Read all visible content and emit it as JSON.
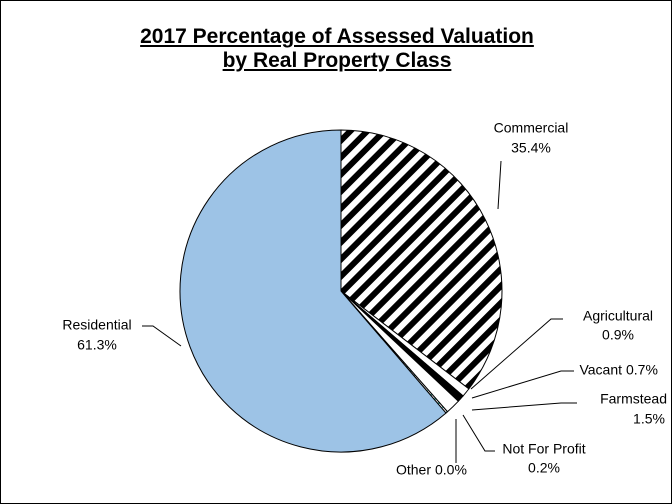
{
  "chart_data": {
    "type": "pie",
    "title": "2017 Percentage of Assessed Valuation by Real Property Class",
    "categories": [
      "Commercial",
      "Agricultural",
      "Vacant",
      "Farmstead",
      "Not For Profit",
      "Other",
      "Residential"
    ],
    "values": [
      35.4,
      0.9,
      0.7,
      1.5,
      0.2,
      0.0,
      61.3
    ],
    "value_labels": [
      "35.4%",
      "0.9%",
      "0.7%",
      "1.5%",
      "0.2%",
      "0.0%",
      "61.3%"
    ],
    "colors": [
      "#ffffff",
      "#ffffff",
      "#000000",
      "#ffffff",
      "#ffffff",
      "#ffffff",
      "#9dc3e6"
    ],
    "patterns": [
      "diagonal-stripes",
      null,
      null,
      null,
      "dots",
      null,
      null
    ]
  }
}
